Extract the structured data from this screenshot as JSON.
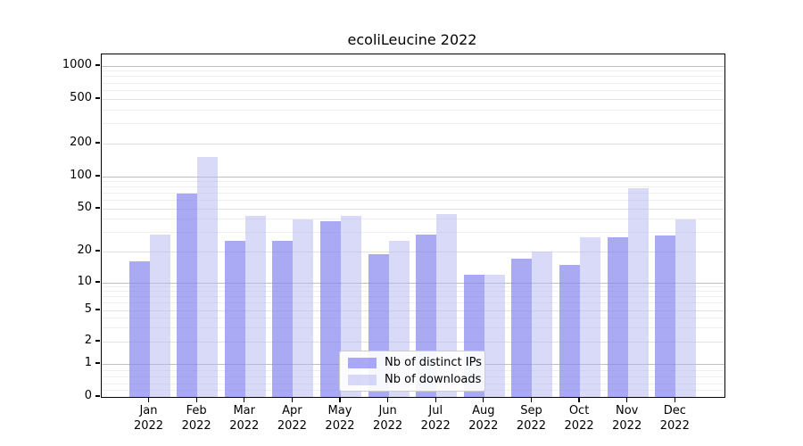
{
  "title": "ecoliLeucine 2022",
  "chart_data": {
    "type": "bar",
    "title": "ecoliLeucine 2022",
    "xlabel": "",
    "ylabel": "",
    "scale": "symlog",
    "ylim": [
      0,
      1000
    ],
    "grid": true,
    "legend_position": "bottom-center",
    "categories": [
      "Jan",
      "Feb",
      "Mar",
      "Apr",
      "May",
      "Jun",
      "Jul",
      "Aug",
      "Sep",
      "Oct",
      "Nov",
      "Dec"
    ],
    "year_label": "2022",
    "y_ticks": [
      0,
      1,
      2,
      5,
      10,
      20,
      50,
      100,
      200,
      500,
      1000
    ],
    "series": [
      {
        "name": "Nb of distinct IPs",
        "color": "rgba(132,132,239,0.7)",
        "values": [
          16,
          70,
          25,
          25,
          38,
          19,
          29,
          12,
          17,
          15,
          27,
          28
        ]
      },
      {
        "name": "Nb of downloads",
        "color": "rgba(179,179,241,0.5)",
        "values": [
          29,
          150,
          43,
          40,
          43,
          25,
          45,
          12,
          20,
          27,
          78,
          40
        ]
      }
    ]
  }
}
